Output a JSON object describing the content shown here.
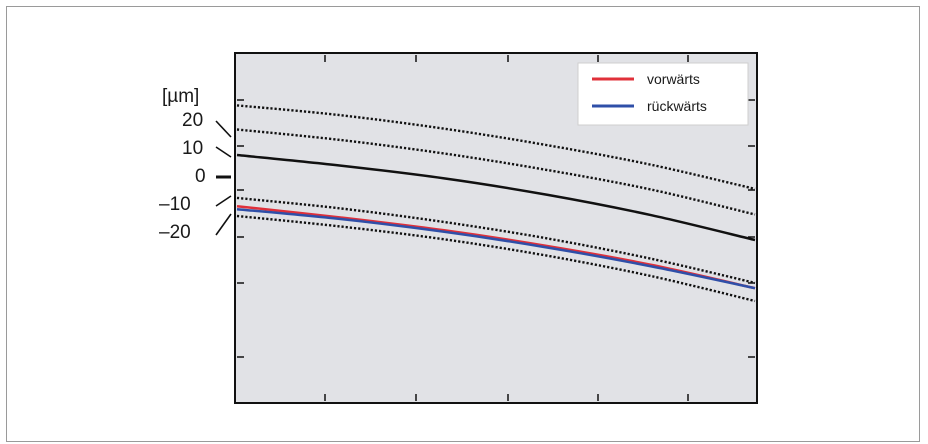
{
  "chart_data": {
    "type": "line",
    "title": "",
    "xlabel": "",
    "ylabel": "[µm]",
    "y_scale_labels": [
      "20",
      "10",
      "0",
      "–10",
      "–20"
    ],
    "legend": {
      "placement": "top-right",
      "entries": [
        "vorwärts",
        "rückwärts"
      ]
    },
    "grid": false,
    "colors": {
      "plot_bg": "#e1e2e6",
      "vorwaerts": "#e0303a",
      "rueckwaerts": "#2f4fa8",
      "reference": "#111111"
    },
    "series": [
      {
        "name": "vorwärts",
        "style": "solid",
        "color": "#e0303a",
        "x": [
          0,
          0.2,
          0.4,
          0.6,
          0.8,
          1.0
        ],
        "y": [
          -4.1,
          -5.6,
          -7.3,
          -9.4,
          -11.9,
          -15.0
        ]
      },
      {
        "name": "rückwärts",
        "style": "solid",
        "color": "#2f4fa8",
        "x": [
          0,
          0.2,
          0.4,
          0.6,
          0.8,
          1.0
        ],
        "y": [
          -4.5,
          -5.8,
          -7.5,
          -9.6,
          -12.1,
          -15.0
        ]
      }
    ],
    "reference_lines": [
      {
        "offset": 20,
        "style": "dotted",
        "x": [
          0,
          0.2,
          0.4,
          0.6,
          0.8,
          1.0
        ],
        "y": [
          9.3,
          8.0,
          6.2,
          4.0,
          1.4,
          -1.8
        ]
      },
      {
        "offset": 10,
        "style": "dotted",
        "x": [
          0,
          0.2,
          0.4,
          0.6,
          0.8,
          1.0
        ],
        "y": [
          6.1,
          4.7,
          2.9,
          0.7,
          -1.9,
          -5.2
        ]
      },
      {
        "offset": 0,
        "style": "solid",
        "x": [
          0,
          0.2,
          0.4,
          0.6,
          0.8,
          1.0
        ],
        "y": [
          2.7,
          1.3,
          -0.4,
          -2.6,
          -5.3,
          -8.6
        ]
      },
      {
        "offset": -10,
        "style": "dotted",
        "x": [
          0,
          0.2,
          0.4,
          0.6,
          0.8,
          1.0
        ],
        "y": [
          -3.0,
          -4.4,
          -6.2,
          -8.4,
          -11.1,
          -14.3
        ]
      },
      {
        "offset": -20,
        "style": "dotted",
        "x": [
          0,
          0.2,
          0.4,
          0.6,
          0.8,
          1.0
        ],
        "y": [
          -5.4,
          -6.8,
          -8.5,
          -10.7,
          -13.4,
          -16.7
        ]
      }
    ],
    "xlim": [
      0,
      1
    ],
    "ylim": [
      -30,
      16
    ]
  }
}
